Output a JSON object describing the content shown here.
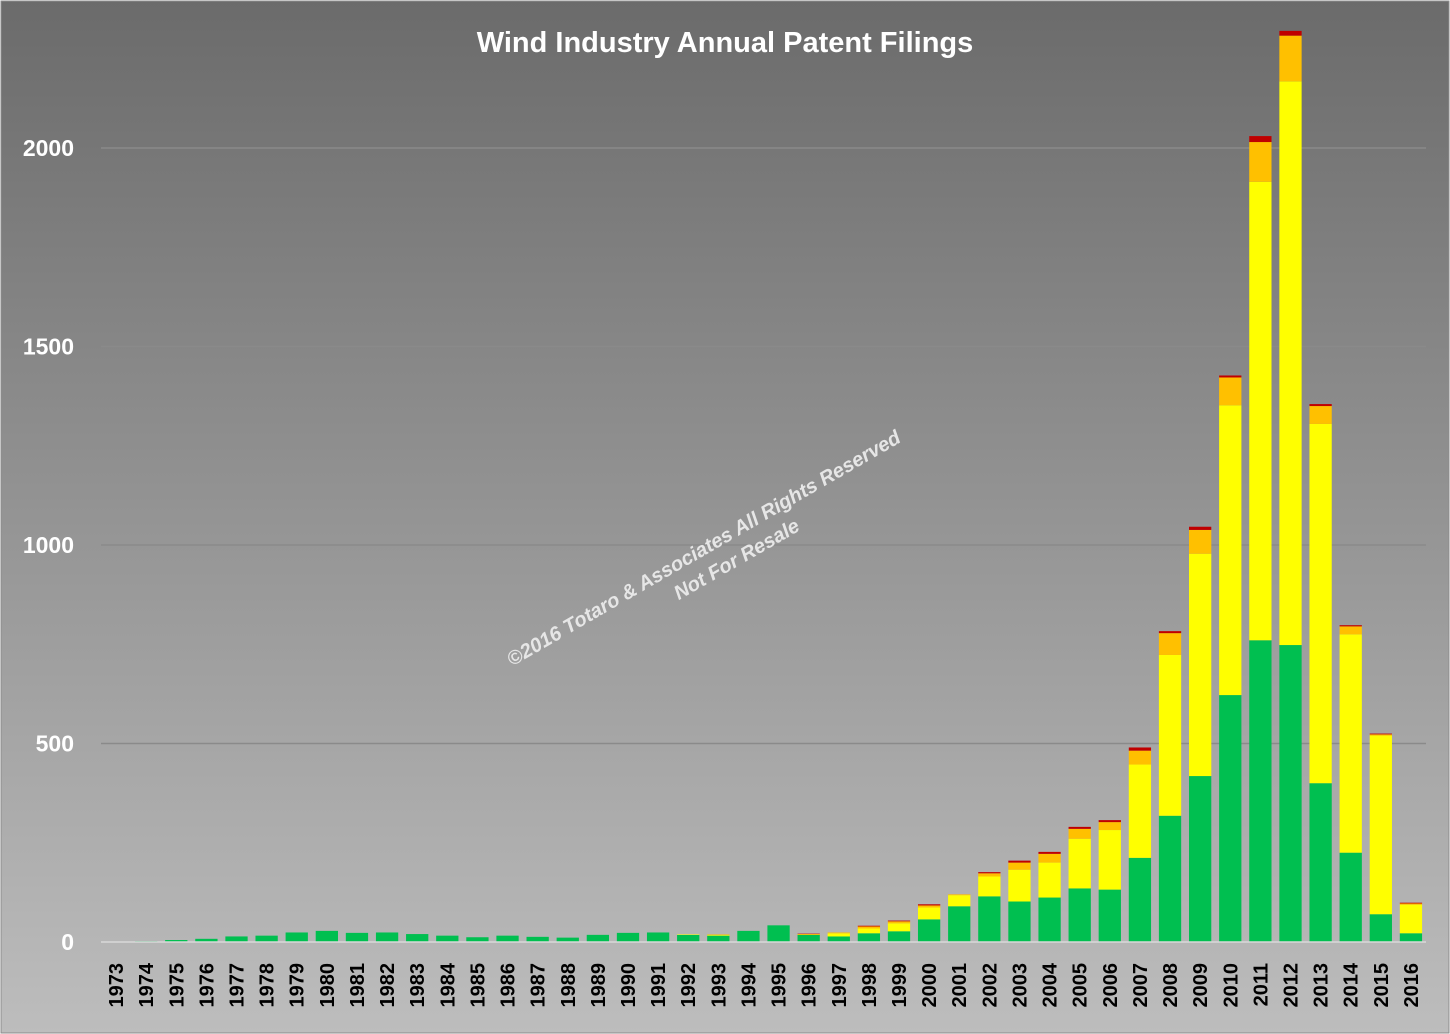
{
  "chart_data": {
    "type": "bar",
    "stacked": true,
    "title": "Wind Industry Annual Patent Filings",
    "xlabel": "",
    "ylabel": "",
    "ylim": [
      0,
      2300
    ],
    "yticks": [
      0,
      500,
      1000,
      1500,
      2000
    ],
    "grid": true,
    "legend": "none",
    "watermark": [
      "©2016 Totaro & Associates  All Rights Reserved",
      "Not For Resale"
    ],
    "categories": [
      "1973",
      "1974",
      "1975",
      "1976",
      "1977",
      "1978",
      "1979",
      "1980",
      "1981",
      "1982",
      "1983",
      "1984",
      "1985",
      "1986",
      "1987",
      "1988",
      "1989",
      "1990",
      "1991",
      "1992",
      "1993",
      "1994",
      "1995",
      "1996",
      "1997",
      "1998",
      "1999",
      "2000",
      "2001",
      "2002",
      "2003",
      "2004",
      "2005",
      "2006",
      "2007",
      "2008",
      "2009",
      "2010",
      "2011",
      "2012",
      "2013",
      "2014",
      "2015",
      "2016"
    ],
    "series": [
      {
        "color": "#00bf50",
        "values": [
          1,
          2,
          5,
          8,
          14,
          16,
          24,
          28,
          23,
          24,
          20,
          16,
          12,
          16,
          13,
          11,
          18,
          23,
          24,
          18,
          16,
          28,
          42,
          18,
          14,
          22,
          27,
          57,
          90,
          115,
          102,
          112,
          135,
          132,
          212,
          318,
          418,
          622,
          760,
          748,
          400,
          225,
          70,
          22
        ]
      },
      {
        "color": "#ffff00",
        "values": [
          0,
          0,
          0,
          0,
          0,
          0,
          0,
          0,
          0,
          0,
          0,
          0,
          0,
          0,
          0,
          0,
          0,
          0,
          0,
          1,
          2,
          0,
          0,
          1,
          8,
          12,
          20,
          30,
          28,
          50,
          80,
          88,
          125,
          150,
          235,
          405,
          560,
          730,
          1155,
          1420,
          905,
          550,
          450,
          72
        ]
      },
      {
        "color": "#ffc000",
        "values": [
          0,
          0,
          0,
          0,
          0,
          0,
          0,
          0,
          0,
          0,
          0,
          0,
          0,
          0,
          0,
          0,
          0,
          0,
          0,
          0,
          1,
          0,
          0,
          1,
          2,
          5,
          5,
          5,
          2,
          8,
          18,
          22,
          25,
          20,
          35,
          55,
          60,
          70,
          100,
          115,
          45,
          20,
          3,
          3
        ]
      },
      {
        "color": "#c00000",
        "values": [
          0,
          0,
          0,
          0,
          0,
          0,
          0,
          0,
          0,
          0,
          0,
          0,
          0,
          0,
          0,
          0,
          0,
          0,
          0,
          0,
          0,
          0,
          0,
          1,
          0,
          2,
          2,
          3,
          0,
          3,
          5,
          5,
          5,
          5,
          8,
          5,
          8,
          5,
          15,
          12,
          5,
          3,
          2,
          2
        ]
      }
    ]
  }
}
